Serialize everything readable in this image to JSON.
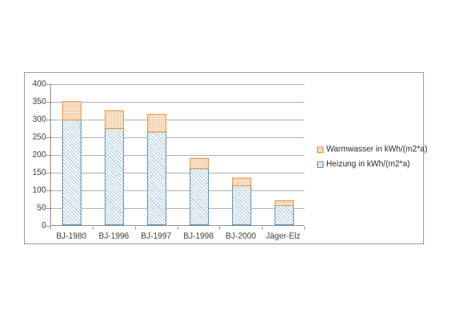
{
  "chart_data": {
    "type": "bar",
    "stacked": true,
    "title": "",
    "xlabel": "",
    "ylabel": "",
    "categories": [
      "BJ-1980",
      "BJ-1996",
      "BJ-1997",
      "BJ-1998",
      "BJ-2000",
      "Jäger-Elz"
    ],
    "series": [
      {
        "name": "Heizung in kWh/(m2*a)",
        "values": [
          297,
          273,
          263,
          158,
          110,
          55
        ],
        "fill": "#ffffff",
        "hatch": "diagonal",
        "hatch_color": "#9ec2dc",
        "border_color": "#4d88ac"
      },
      {
        "name": "Warmwasser in kWh/(m2*a)",
        "values": [
          53,
          52,
          52,
          32,
          25,
          15
        ],
        "fill": "#fcecd9",
        "hatch": "dotted",
        "hatch_color": "#e39a55",
        "border_color": "#e0873a"
      }
    ],
    "totals": [
      350,
      325,
      315,
      190,
      135,
      70
    ],
    "ylim": [
      0,
      400
    ],
    "yticks": [
      0,
      50,
      100,
      150,
      200,
      250,
      300,
      350,
      400
    ],
    "grid": true,
    "gridline_color": "#a6a6a6",
    "axis_color": "#7f7f7f",
    "text_color": "#3d3d3d",
    "frame_border_color": "#8c8c8c",
    "legend_position": "right",
    "legend_order": [
      "Warmwasser in kWh/(m2*a)",
      "Heizung in kWh/(m2*a)"
    ]
  }
}
